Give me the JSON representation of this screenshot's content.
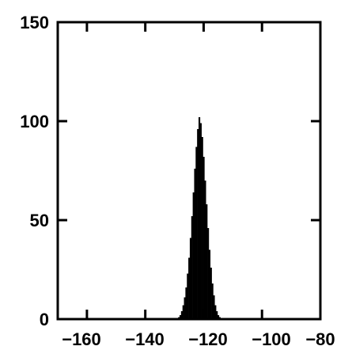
{
  "chart_data": {
    "type": "bar",
    "title": "",
    "xlabel": "",
    "ylabel": "",
    "xlim": [
      -170,
      -80
    ],
    "ylim": [
      0,
      150
    ],
    "grid": false,
    "x_ticks": [
      -160,
      -140,
      -120,
      -100,
      -80
    ],
    "x_tick_labels": [
      "−160",
      "−140",
      "−120",
      "−100",
      "−80"
    ],
    "y_ticks": [
      0,
      50,
      100,
      150
    ],
    "y_tick_labels": [
      "0",
      "50",
      "100",
      "150"
    ],
    "bin_width": 0.5,
    "bar_color": "#000000",
    "x": [
      -128.5,
      -128,
      -127.5,
      -127,
      -126.5,
      -126,
      -125.5,
      -125,
      -124.5,
      -124,
      -123.5,
      -123,
      -122.5,
      -122,
      -121.5,
      -121,
      -120.5,
      -120,
      -119.5,
      -119,
      -118.5,
      -118,
      -117.5,
      -117,
      -116.5,
      -116,
      -115.5,
      -115,
      -114.5
    ],
    "values": [
      1,
      2,
      4,
      7,
      11,
      16,
      23,
      31,
      41,
      52,
      64,
      76,
      87,
      96,
      102,
      99,
      92,
      82,
      70,
      58,
      46,
      35,
      26,
      18,
      12,
      7,
      4,
      2,
      1
    ]
  }
}
